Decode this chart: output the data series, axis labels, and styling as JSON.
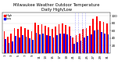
{
  "title": "Milwaukee Weather Outdoor Temperature\nDaily High/Low",
  "title_fontsize": 3.8,
  "background_color": "#ffffff",
  "high_color": "#ff0000",
  "low_color": "#0000ff",
  "dashed_line_color": "#aaaaff",
  "ylim": [
    0,
    110
  ],
  "ylabel_fontsize": 3.0,
  "xlabel_fontsize": 2.8,
  "days": [
    1,
    2,
    3,
    4,
    5,
    6,
    7,
    8,
    9,
    10,
    11,
    12,
    13,
    14,
    15,
    16,
    17,
    18,
    19,
    20,
    21,
    22,
    23,
    24,
    25,
    26,
    27,
    28,
    29,
    30,
    31
  ],
  "highs": [
    58,
    44,
    52,
    68,
    64,
    72,
    68,
    62,
    58,
    82,
    76,
    78,
    74,
    70,
    66,
    72,
    78,
    80,
    76,
    72,
    42,
    48,
    52,
    64,
    68,
    74,
    92,
    98,
    86,
    84,
    80
  ],
  "lows": [
    38,
    28,
    32,
    46,
    42,
    48,
    44,
    40,
    36,
    55,
    50,
    52,
    48,
    46,
    42,
    48,
    52,
    53,
    50,
    46,
    26,
    30,
    34,
    42,
    46,
    50,
    60,
    63,
    56,
    53,
    50
  ],
  "dashed_lines": [
    21.5,
    22.5,
    23.5,
    24.5
  ],
  "yticks": [
    20,
    40,
    60,
    80,
    100
  ],
  "ytick_labels": [
    "20",
    "40",
    "60",
    "80",
    "100"
  ],
  "legend_high": "High",
  "legend_low": "Low",
  "bar_width": 0.4
}
